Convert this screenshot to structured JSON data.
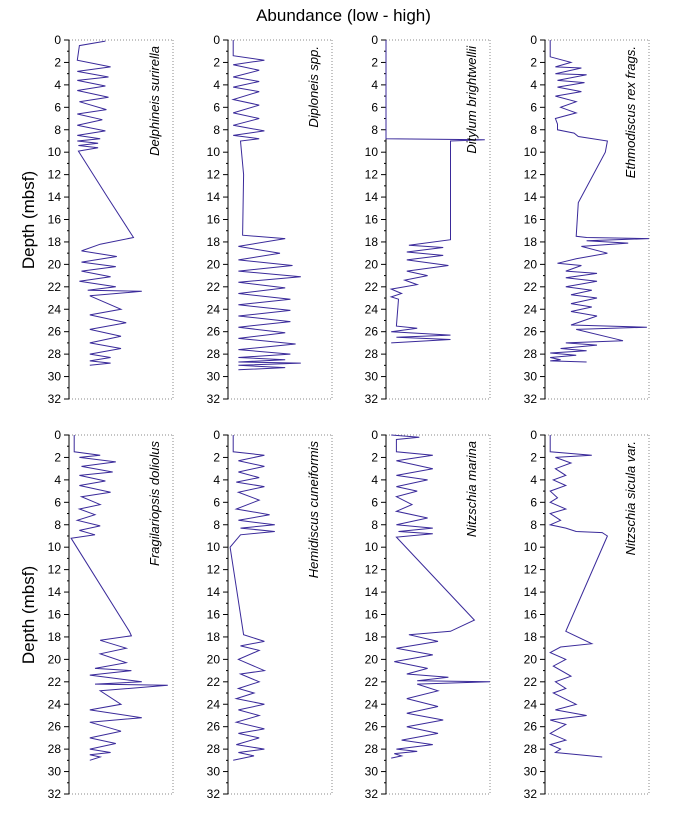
{
  "chart_data": {
    "type": "line",
    "title": "Abundance (low - high)",
    "ylabel_top": "Depth  (mbsf)",
    "ylabel_bottom": "Depth (mbsf)",
    "ylim": [
      0,
      32
    ],
    "yticks": [
      0,
      2,
      4,
      6,
      8,
      10,
      12,
      14,
      16,
      18,
      20,
      22,
      24,
      26,
      28,
      30,
      32
    ],
    "line_color": "#3a2a9a",
    "panels": [
      {
        "name": "Delphineis surirella",
        "xlim": [
          0,
          1
        ],
        "x": [
          0.35,
          0.1,
          0.08,
          0.4,
          0.08,
          0.38,
          0.08,
          0.35,
          0.08,
          0.38,
          0.1,
          0.36,
          0.08,
          0.32,
          0.08,
          0.35,
          0.08,
          0.3,
          0.08,
          0.28,
          0.09,
          0.28,
          0.09,
          0.37,
          0.62,
          0.3,
          0.12,
          0.46,
          0.12,
          0.45,
          0.12,
          0.4,
          0.1,
          0.45,
          0.18,
          0.7,
          0.2,
          0.5,
          0.2,
          0.55,
          0.2,
          0.5,
          0.2,
          0.5,
          0.2,
          0.4,
          0.2,
          0.4,
          0.2
        ],
        "y": [
          0.1,
          0.5,
          1.8,
          2.4,
          2.8,
          3.3,
          3.6,
          4.1,
          4.5,
          5.1,
          5.5,
          6.2,
          6.6,
          7.1,
          7.6,
          8.1,
          8.5,
          8.8,
          9.0,
          9.2,
          9.4,
          9.6,
          9.9,
          14.0,
          17.6,
          18.2,
          18.8,
          19.3,
          19.8,
          20.2,
          20.6,
          21.1,
          21.5,
          22.0,
          22.3,
          22.4,
          22.8,
          24.0,
          24.5,
          25.2,
          25.8,
          26.4,
          27.0,
          27.5,
          28.0,
          28.3,
          28.6,
          28.8,
          29.0
        ]
      },
      {
        "name": "Diploneis spp.",
        "xlim": [
          0,
          1
        ],
        "x": [
          0.05,
          0.05,
          0.35,
          0.05,
          0.3,
          0.05,
          0.3,
          0.05,
          0.3,
          0.05,
          0.3,
          0.05,
          0.3,
          0.05,
          0.35,
          0.05,
          0.3,
          0.12,
          0.15,
          0.14,
          0.55,
          0.1,
          0.5,
          0.1,
          0.62,
          0.1,
          0.7,
          0.1,
          0.55,
          0.1,
          0.6,
          0.1,
          0.6,
          0.1,
          0.6,
          0.1,
          0.55,
          0.1,
          0.65,
          0.1,
          0.6,
          0.1,
          0.55,
          0.1,
          0.7,
          0.1,
          0.55,
          0.1
        ],
        "y": [
          0,
          1.4,
          1.8,
          2.2,
          2.7,
          3.3,
          3.7,
          4.2,
          4.6,
          5.3,
          5.8,
          6.5,
          7.0,
          7.6,
          8.1,
          8.5,
          8.8,
          9.0,
          12.0,
          17.4,
          17.7,
          18.4,
          19.0,
          19.6,
          20.1,
          20.6,
          21.1,
          21.6,
          22.1,
          22.6,
          23.1,
          23.6,
          24.1,
          24.6,
          25.1,
          25.6,
          26.1,
          26.6,
          27.1,
          27.6,
          28.0,
          28.3,
          28.5,
          28.7,
          28.8,
          29.0,
          29.2,
          29.4
        ]
      },
      {
        "name": "Ditylum brightwellii",
        "xlim": [
          0,
          1
        ],
        "x": [
          0,
          0,
          0.95,
          0.62,
          0.62,
          0.22,
          0.55,
          0.2,
          0.55,
          0.2,
          0.6,
          0.2,
          0.4,
          0.18,
          0.3,
          0.05,
          0.15,
          0.05,
          0.12,
          0.1,
          0.3,
          0.05,
          0.62,
          0.1,
          0.62,
          0.05
        ],
        "y": [
          0,
          8.8,
          8.9,
          9.0,
          17.8,
          18.3,
          18.5,
          18.9,
          19.2,
          19.6,
          20.1,
          20.6,
          21.0,
          21.4,
          21.8,
          22.2,
          22.6,
          22.9,
          23.1,
          25.5,
          25.7,
          26.0,
          26.3,
          26.5,
          26.7,
          27.0
        ]
      },
      {
        "name": "Ethmodiscus rex frags.",
        "xlim": [
          0,
          1
        ],
        "x": [
          0.05,
          0.05,
          0.25,
          0.1,
          0.35,
          0.1,
          0.4,
          0.12,
          0.38,
          0.12,
          0.35,
          0.1,
          0.3,
          0.15,
          0.3,
          0.1,
          0.12,
          0.12,
          0.28,
          0.32,
          0.6,
          0.58,
          0.32,
          0.3,
          0.4,
          1.0,
          0.4,
          0.8,
          0.35,
          0.6,
          0.3,
          0.12,
          0.35,
          0.2,
          0.5,
          0.2,
          0.5,
          0.2,
          0.45,
          0.25,
          0.5,
          0.25,
          0.45,
          0.25,
          0.5,
          0.25,
          0.98,
          0.3,
          0.75,
          0.2,
          0.5,
          0.15,
          0.4,
          0.05,
          0.3,
          0.05,
          0.15,
          0.05,
          0.4
        ],
        "y": [
          0,
          1.5,
          2.0,
          2.4,
          2.5,
          3.0,
          3.1,
          3.6,
          3.8,
          4.2,
          4.6,
          5.0,
          5.5,
          6.0,
          6.5,
          7.0,
          7.5,
          8.0,
          8.3,
          8.6,
          9.0,
          10.0,
          14.5,
          17.5,
          17.6,
          17.7,
          17.9,
          18.1,
          18.4,
          19.0,
          19.5,
          19.9,
          20.1,
          20.6,
          20.8,
          21.2,
          21.5,
          22.0,
          22.3,
          22.7,
          23.0,
          23.5,
          23.8,
          24.2,
          24.6,
          25.4,
          25.6,
          25.8,
          26.8,
          27.0,
          27.2,
          27.5,
          27.7,
          27.9,
          28.1,
          28.3,
          28.5,
          28.6,
          28.7
        ]
      },
      {
        "name": "Fragilariopsis doliolus",
        "xlim": [
          0,
          1
        ],
        "x": [
          0.05,
          0.05,
          0.3,
          0.1,
          0.45,
          0.12,
          0.42,
          0.1,
          0.35,
          0.1,
          0.4,
          0.12,
          0.3,
          0.1,
          0.25,
          0.08,
          0.3,
          0.1,
          0.25,
          0.02,
          0.58,
          0.6,
          0.3,
          0.55,
          0.3,
          0.55,
          0.25,
          0.6,
          0.2,
          0.7,
          0.25,
          0.95,
          0.3,
          0.5,
          0.2,
          0.7,
          0.2,
          0.5,
          0.2,
          0.45,
          0.2,
          0.4,
          0.2,
          0.3,
          0.2
        ],
        "y": [
          0,
          1.5,
          1.8,
          2.0,
          2.4,
          2.8,
          3.3,
          3.6,
          4.1,
          4.5,
          5.1,
          5.5,
          6.2,
          6.6,
          7.1,
          7.6,
          8.1,
          8.5,
          8.9,
          9.2,
          17.5,
          17.9,
          18.3,
          19.0,
          19.5,
          20.3,
          20.8,
          21.0,
          21.4,
          22.0,
          22.2,
          22.3,
          22.8,
          24.0,
          24.5,
          25.2,
          25.6,
          26.4,
          27.0,
          27.5,
          28.0,
          28.3,
          28.5,
          28.7,
          29.0
        ]
      },
      {
        "name": "Hemidiscus cuneiformis",
        "xlim": [
          0,
          1
        ],
        "x": [
          0.05,
          0.05,
          0.35,
          0.1,
          0.35,
          0.1,
          0.3,
          0.08,
          0.35,
          0.1,
          0.3,
          0.08,
          0.4,
          0.1,
          0.45,
          0.12,
          0.45,
          0.12,
          0.02,
          0.15,
          0.35,
          0.12,
          0.3,
          0.1,
          0.35,
          0.12,
          0.3,
          0.1,
          0.25,
          0.08,
          0.35,
          0.1,
          0.3,
          0.08,
          0.35,
          0.1,
          0.3,
          0.08,
          0.35,
          0.1,
          0.25,
          0.05
        ],
        "y": [
          0,
          1.5,
          1.8,
          2.3,
          2.8,
          3.3,
          3.8,
          4.2,
          4.6,
          5.1,
          5.8,
          6.6,
          7.1,
          7.6,
          8.0,
          8.3,
          8.6,
          8.9,
          10.0,
          17.8,
          18.4,
          18.8,
          19.2,
          20.0,
          21.0,
          21.3,
          22.0,
          22.6,
          23.0,
          23.5,
          24.0,
          24.5,
          25.0,
          25.6,
          26.2,
          26.6,
          27.0,
          27.6,
          28.0,
          28.3,
          28.6,
          29.0
        ]
      },
      {
        "name": "Nitzschia marina",
        "xlim": [
          0,
          1
        ],
        "x": [
          0.05,
          0.32,
          0.1,
          0.1,
          0.45,
          0.1,
          0.45,
          0.1,
          0.4,
          0.1,
          0.3,
          0.1,
          0.25,
          0.1,
          0.4,
          0.1,
          0.45,
          0.12,
          0.45,
          0.1,
          0.85,
          0.62,
          0.22,
          0.5,
          0.1,
          0.45,
          0.08,
          0.4,
          0.2,
          0.6,
          0.3,
          1.0,
          0.3,
          0.5,
          0.2,
          0.5,
          0.2,
          0.55,
          0.2,
          0.5,
          0.15,
          0.45,
          0.1,
          0.3,
          0.08,
          0.15,
          0.05
        ],
        "y": [
          0,
          0.2,
          0.4,
          1.5,
          1.8,
          2.3,
          3.0,
          3.6,
          4.0,
          4.6,
          5.0,
          5.5,
          6.2,
          6.8,
          7.4,
          8.0,
          8.3,
          8.6,
          8.8,
          9.1,
          16.5,
          17.5,
          17.8,
          18.4,
          19.0,
          19.6,
          20.2,
          20.8,
          21.3,
          21.6,
          21.9,
          22.0,
          22.2,
          22.8,
          23.5,
          24.2,
          24.8,
          25.4,
          26.0,
          26.6,
          27.2,
          27.6,
          28.0,
          28.2,
          28.4,
          28.6,
          28.8
        ]
      },
      {
        "name": "Nitzschia sicula var.",
        "xlim": [
          0,
          1
        ],
        "x": [
          0.05,
          0.05,
          0.45,
          0.1,
          0.25,
          0.1,
          0.2,
          0.08,
          0.2,
          0.05,
          0.12,
          0.05,
          0.2,
          0.05,
          0.15,
          0.05,
          0.2,
          0.3,
          0.55,
          0.6,
          0.2,
          0.45,
          0.15,
          0.05,
          0.2,
          0.08,
          0.25,
          0.1,
          0.2,
          0.08,
          0.3,
          0.1,
          0.4,
          0.05,
          0.2,
          0.05,
          0.2,
          0.05,
          0.15,
          0.1,
          0.55
        ],
        "y": [
          0,
          1.5,
          1.8,
          2.0,
          2.5,
          3.0,
          3.6,
          4.0,
          4.5,
          5.0,
          5.6,
          6.0,
          6.6,
          7.0,
          7.6,
          8.0,
          8.3,
          8.6,
          8.7,
          9.0,
          17.5,
          18.6,
          18.9,
          19.4,
          20.0,
          20.6,
          21.5,
          22.0,
          22.6,
          23.0,
          24.0,
          24.5,
          25.0,
          25.4,
          25.8,
          26.6,
          27.2,
          27.6,
          28.0,
          28.3,
          28.7
        ]
      }
    ]
  }
}
